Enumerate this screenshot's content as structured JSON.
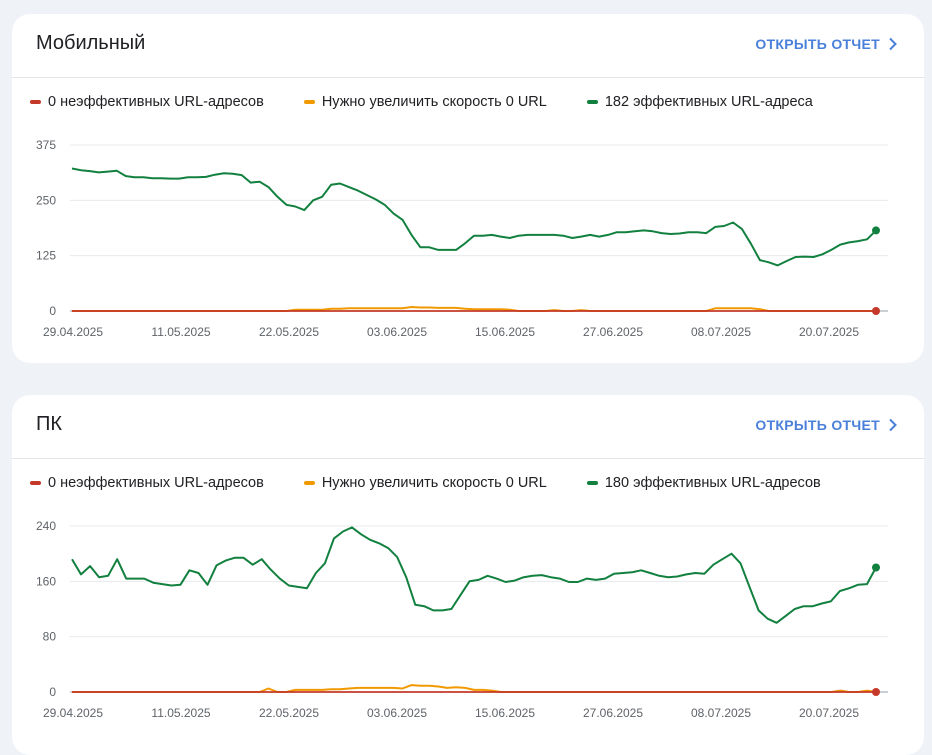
{
  "colors": {
    "red": "#c5392a",
    "orange": "#f29900",
    "green": "#12803f"
  },
  "cards": [
    {
      "title": "Мобильный",
      "open_report": "ОТКРЫТЬ ОТЧЕТ",
      "legend": [
        "0 неэффективных URL-адресов",
        "Нужно увеличить скорость 0 URL",
        "182 эффективных URL-адреса"
      ]
    },
    {
      "title": "ПК",
      "open_report": "ОТКРЫТЬ ОТЧЕТ",
      "legend": [
        "0 неэффективных URL-адресов",
        "Нужно увеличить скорость 0 URL",
        "180 эффективных URL-адресов"
      ]
    }
  ],
  "chart_data": [
    {
      "type": "line",
      "x_tick_labels": [
        "29.04.2025",
        "11.05.2025",
        "22.05.2025",
        "03.06.2025",
        "15.06.2025",
        "27.06.2025",
        "08.07.2025",
        "20.07.2025"
      ],
      "y_ticks": [
        0,
        125,
        250,
        375
      ],
      "ylim": [
        0,
        375
      ],
      "grid": true,
      "legend_position": "top-left",
      "series": [
        {
          "name": "0 неэффективных URL-адресов",
          "color": "red",
          "values": [
            0,
            0,
            0,
            0,
            0,
            0,
            0,
            0,
            0,
            0,
            0,
            0,
            0,
            0,
            0,
            0,
            0,
            0,
            0,
            0,
            0,
            0,
            0,
            0,
            0,
            0,
            0,
            0,
            0,
            0,
            0,
            0,
            0,
            0,
            0,
            0,
            0,
            0,
            0,
            0,
            0,
            0,
            0,
            0,
            0,
            0,
            0,
            0,
            0,
            0,
            0,
            0,
            0,
            0,
            0,
            0,
            0,
            0,
            0,
            0,
            0,
            0,
            0,
            0,
            0,
            0,
            0,
            0,
            0,
            0,
            0,
            0,
            0,
            0,
            0,
            0,
            0,
            0,
            0,
            0,
            0,
            0,
            0,
            0,
            0,
            0,
            0,
            0,
            0,
            0
          ]
        },
        {
          "name": "Нужно увеличить скорость 0 URL",
          "color": "orange",
          "values": [
            0,
            0,
            0,
            0,
            0,
            0,
            0,
            0,
            0,
            0,
            0,
            0,
            0,
            0,
            0,
            0,
            0,
            0,
            0,
            0,
            0,
            0,
            0,
            0,
            0,
            3,
            3,
            3,
            3,
            5,
            5,
            6,
            6,
            6,
            6,
            6,
            6,
            6,
            9,
            8,
            8,
            7,
            7,
            7,
            5,
            4,
            4,
            4,
            4,
            3,
            0,
            0,
            0,
            0,
            2,
            0,
            0,
            2,
            0,
            0,
            0,
            0,
            0,
            0,
            0,
            0,
            0,
            0,
            0,
            0,
            0,
            0,
            6,
            6,
            6,
            6,
            6,
            4,
            0,
            0,
            0,
            0,
            0,
            0,
            0,
            0,
            0,
            0,
            0,
            0,
            0
          ]
        },
        {
          "name": "182 эффективных URL-адреса",
          "color": "green",
          "end_marker": true,
          "values": [
            322,
            318,
            316,
            313,
            315,
            317,
            305,
            302,
            302,
            300,
            300,
            299,
            299,
            302,
            302,
            303,
            308,
            311,
            310,
            307,
            290,
            292,
            280,
            258,
            240,
            236,
            228,
            250,
            258,
            285,
            288,
            280,
            272,
            262,
            252,
            240,
            220,
            206,
            172,
            144,
            144,
            138,
            138,
            138,
            153,
            170,
            170,
            172,
            168,
            165,
            170,
            172,
            172,
            172,
            172,
            170,
            165,
            168,
            172,
            168,
            172,
            178,
            178,
            180,
            182,
            180,
            176,
            174,
            175,
            178,
            178,
            176,
            190,
            192,
            200,
            185,
            152,
            115,
            110,
            103,
            113,
            122,
            123,
            122,
            128,
            138,
            150,
            155,
            158,
            162,
            182
          ]
        }
      ]
    },
    {
      "type": "line",
      "x_tick_labels": [
        "29.04.2025",
        "11.05.2025",
        "22.05.2025",
        "03.06.2025",
        "15.06.2025",
        "27.06.2025",
        "08.07.2025",
        "20.07.2025"
      ],
      "y_ticks": [
        0,
        80,
        160,
        240
      ],
      "ylim": [
        0,
        240
      ],
      "grid": true,
      "legend_position": "top-left",
      "series": [
        {
          "name": "0 неэффективных URL-адресов",
          "color": "red",
          "values": [
            0,
            0,
            0,
            0,
            0,
            0,
            0,
            0,
            0,
            0,
            0,
            0,
            0,
            0,
            0,
            0,
            0,
            0,
            0,
            0,
            0,
            0,
            0,
            0,
            0,
            0,
            0,
            0,
            0,
            0,
            0,
            0,
            0,
            0,
            0,
            0,
            0,
            0,
            0,
            0,
            0,
            0,
            0,
            0,
            0,
            0,
            0,
            0,
            0,
            0,
            0,
            0,
            0,
            0,
            0,
            0,
            0,
            0,
            0,
            0,
            0,
            0,
            0,
            0,
            0,
            0,
            0,
            0,
            0,
            0,
            0,
            0,
            0,
            0,
            0,
            0,
            0,
            0,
            0,
            0,
            0,
            0,
            0,
            0,
            0,
            0,
            0,
            0,
            0,
            0,
            0
          ]
        },
        {
          "name": "Нужно увеличить скорость 0 URL",
          "color": "orange",
          "values": [
            0,
            0,
            0,
            0,
            0,
            0,
            0,
            0,
            0,
            0,
            0,
            0,
            0,
            0,
            0,
            0,
            0,
            0,
            0,
            0,
            0,
            0,
            5,
            0,
            0,
            3,
            3,
            3,
            3,
            4,
            4,
            5,
            6,
            6,
            6,
            6,
            6,
            5,
            10,
            9,
            9,
            8,
            6,
            7,
            6,
            3,
            3,
            2,
            0,
            0,
            0,
            0,
            0,
            0,
            0,
            0,
            0,
            0,
            0,
            0,
            0,
            0,
            0,
            0,
            0,
            0,
            0,
            0,
            0,
            0,
            0,
            0,
            0,
            0,
            0,
            0,
            0,
            0,
            0,
            0,
            0,
            0,
            0,
            0,
            0,
            0,
            2,
            0,
            0,
            2,
            0
          ]
        },
        {
          "name": "180 эффективных URL-адресов",
          "color": "green",
          "end_marker": true,
          "values": [
            192,
            170,
            182,
            166,
            168,
            192,
            164,
            164,
            164,
            158,
            156,
            154,
            155,
            176,
            172,
            155,
            183,
            190,
            194,
            194,
            184,
            192,
            177,
            164,
            154,
            152,
            150,
            172,
            186,
            222,
            232,
            238,
            228,
            220,
            215,
            208,
            195,
            166,
            126,
            124,
            118,
            118,
            120,
            140,
            160,
            162,
            168,
            164,
            159,
            161,
            166,
            168,
            169,
            166,
            164,
            159,
            159,
            164,
            162,
            164,
            171,
            172,
            173,
            176,
            172,
            168,
            166,
            167,
            170,
            172,
            171,
            184,
            192,
            200,
            186,
            152,
            118,
            106,
            100,
            110,
            120,
            124,
            124,
            128,
            131,
            146,
            150,
            155,
            156,
            180
          ]
        }
      ]
    }
  ]
}
